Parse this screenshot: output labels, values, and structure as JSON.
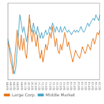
{
  "chart_data": {
    "type": "line",
    "series": [
      {
        "name": "Large Corp.",
        "color": "#e8761a",
        "values": [
          6.2,
          5.8,
          4.8,
          4.2,
          3.5,
          4.5,
          5.8,
          7.2,
          6.0,
          5.5,
          6.8,
          5.5,
          6.5,
          5.2,
          4.8,
          6.5,
          8.5,
          7.0,
          6.2,
          7.2,
          6.5,
          5.8,
          6.8,
          5.5,
          4.8,
          5.5,
          4.5,
          5.2,
          6.0,
          5.5,
          6.2,
          7.0,
          6.5,
          7.5,
          6.8,
          5.8,
          6.5,
          5.5,
          5.2,
          6.0,
          5.5,
          6.2,
          7.0,
          6.5,
          5.8,
          6.2,
          5.5,
          5.0,
          4.5,
          5.0,
          5.5,
          5.2,
          5.0,
          4.8,
          5.2,
          5.8,
          5.5,
          5.2,
          5.5,
          6.0,
          5.8,
          5.5,
          6.2,
          6.5,
          6.0,
          6.5,
          7.0,
          6.8,
          7.2
        ]
      },
      {
        "name": "Middle Market",
        "color": "#4da6c8",
        "values": [
          6.5,
          6.0,
          5.5,
          5.0,
          4.0,
          3.5,
          4.0,
          5.5,
          7.0,
          8.5,
          7.8,
          7.0,
          7.5,
          6.8,
          6.2,
          7.0,
          8.2,
          7.5,
          7.0,
          7.8,
          7.2,
          6.8,
          7.5,
          7.0,
          6.5,
          7.0,
          6.5,
          6.8,
          7.2,
          6.8,
          7.0,
          7.5,
          7.2,
          7.8,
          7.5,
          7.0,
          7.5,
          7.2,
          7.0,
          7.5,
          7.0,
          7.2,
          7.5,
          7.2,
          7.0,
          7.2,
          7.0,
          6.8,
          7.0,
          7.2,
          7.0,
          7.2,
          7.0,
          7.2,
          7.5,
          7.2,
          7.0,
          7.2,
          7.5,
          7.8,
          7.5,
          7.8,
          8.0,
          8.2,
          8.0,
          8.5,
          8.2,
          8.0,
          8.5
        ]
      }
    ],
    "xlim": [
      0,
      26
    ],
    "xticks": [
      {
        "value": 0,
        "label": "Q4'08"
      },
      {
        "value": 1,
        "label": "Q1'09"
      },
      {
        "value": 2,
        "label": "Q2'09"
      },
      {
        "value": 3,
        "label": "Q3'09"
      },
      {
        "value": 4,
        "label": "Q4'09"
      },
      {
        "value": 5,
        "label": "Q1'10"
      },
      {
        "value": 6,
        "label": "Q2'10"
      },
      {
        "value": 7,
        "label": "Q3'10"
      },
      {
        "value": 8,
        "label": "Q4'10"
      },
      {
        "value": 9,
        "label": "Q1'11"
      },
      {
        "value": 10,
        "label": "Q2'11"
      },
      {
        "value": 11,
        "label": "Q3'11"
      },
      {
        "value": 12,
        "label": "Q4'11"
      },
      {
        "value": 13,
        "label": "Q1'12"
      },
      {
        "value": 14,
        "label": "Q2'12"
      },
      {
        "value": 15,
        "label": "Q3'12"
      },
      {
        "value": 16,
        "label": "Q4'12"
      },
      {
        "value": 17,
        "label": "Q1'13"
      },
      {
        "value": 18,
        "label": "Q2'13"
      },
      {
        "value": 19,
        "label": "Q3'13"
      },
      {
        "value": 20,
        "label": "Q4'13"
      },
      {
        "value": 21,
        "label": "Q1'14"
      },
      {
        "value": 22,
        "label": "Q2'14"
      },
      {
        "value": 23,
        "label": "Q3'14"
      },
      {
        "value": 24,
        "label": "Q4'14"
      },
      {
        "value": 25,
        "label": "Q1'15"
      },
      {
        "value": 26,
        "label": "Q2'15"
      }
    ],
    "ylim": [
      3.0,
      9.5
    ],
    "yticks": [],
    "tick_labels": "x",
    "grid": false,
    "legend": "lower left"
  }
}
